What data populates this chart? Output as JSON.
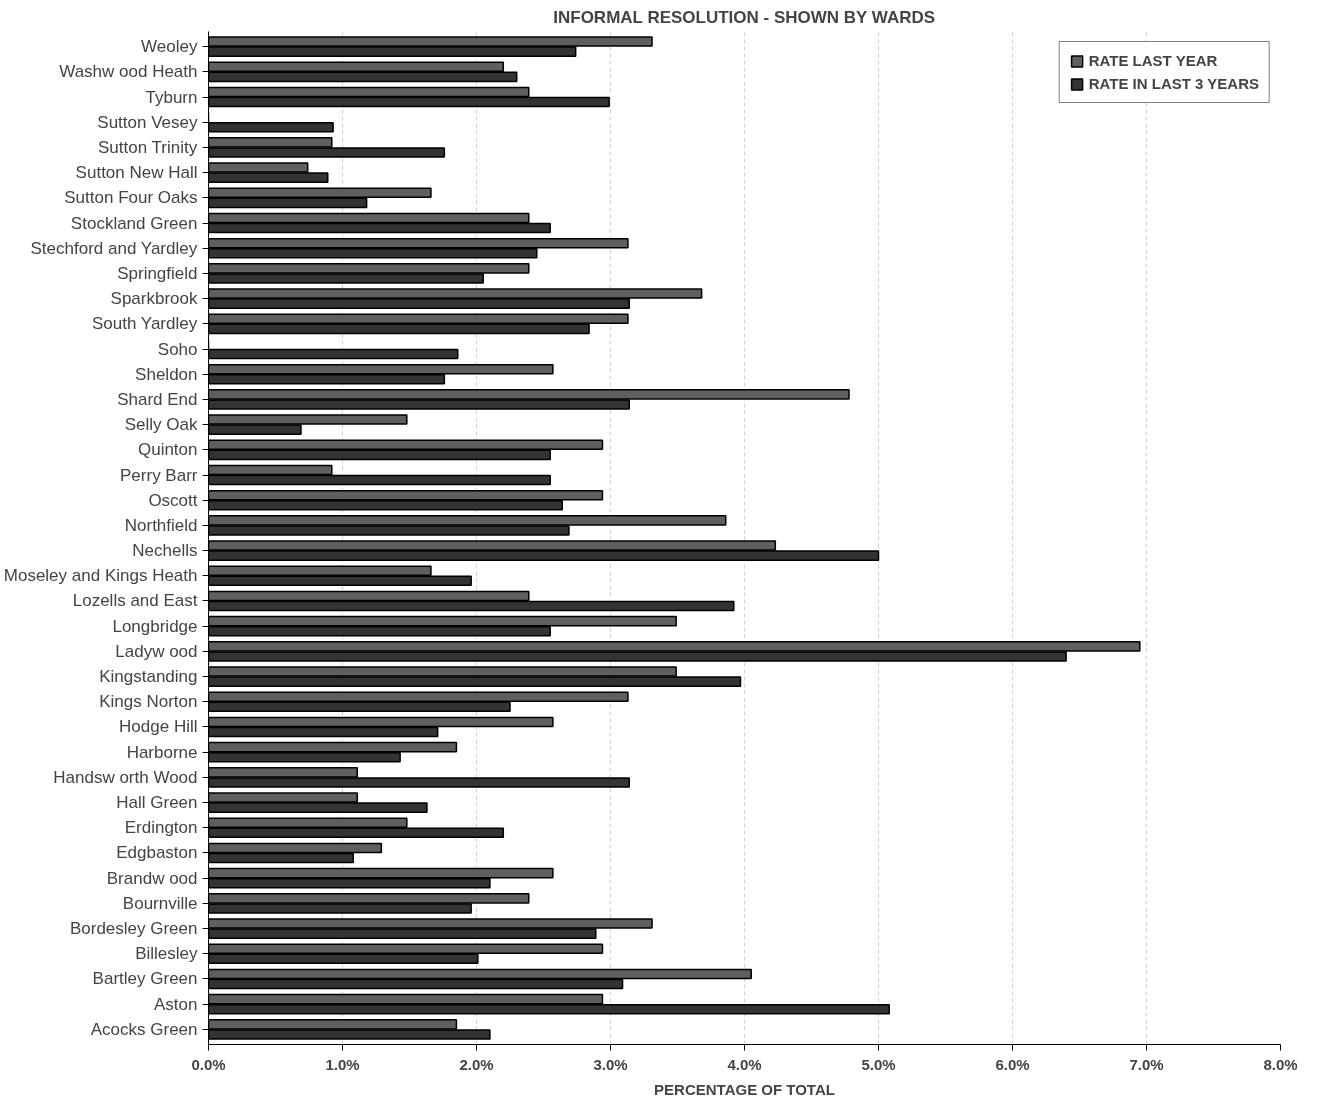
{
  "chart_data": {
    "type": "bar",
    "orientation": "horizontal",
    "title": "INFORMAL RESOLUTION - SHOWN BY WARDS",
    "xlabel": "PERCENTAGE OF TOTAL",
    "categories": [
      "Weoley",
      "Washw ood Heath",
      "Tyburn",
      "Sutton Vesey",
      "Sutton Trinity",
      "Sutton New Hall",
      "Sutton Four Oaks",
      "Stockland Green",
      "Stechford and Yardley",
      "Springfield",
      "Sparkbrook",
      "South Yardley",
      "Soho",
      "Sheldon",
      "Shard End",
      "Selly Oak",
      "Quinton",
      "Perry Barr",
      "Oscott",
      "Northfield",
      "Nechells",
      "Moseley and Kings Heath",
      "Lozells and East",
      "Longbridge",
      "Ladyw ood",
      "Kingstanding",
      "Kings Norton",
      "Hodge Hill",
      "Harborne",
      "Handsw orth Wood",
      "Hall Green",
      "Erdington",
      "Edgbaston",
      "Brandw ood",
      "Bournville",
      "Bordesley Green",
      "Billesley",
      "Bartley Green",
      "Aston",
      "Acocks Green"
    ],
    "series": [
      {
        "name": "RATE LAST YEAR",
        "color": "#5f5f5f",
        "values": [
          3.31,
          2.2,
          2.39,
          null,
          0.92,
          0.74,
          1.66,
          2.39,
          3.13,
          2.39,
          3.68,
          3.13,
          null,
          2.57,
          4.78,
          1.48,
          2.94,
          0.92,
          2.94,
          3.86,
          4.23,
          1.66,
          2.39,
          3.49,
          6.95,
          3.49,
          3.13,
          2.57,
          1.85,
          1.11,
          1.11,
          1.48,
          1.29,
          2.57,
          2.39,
          3.31,
          2.94,
          4.05,
          2.94,
          1.85
        ]
      },
      {
        "name": "RATE IN LAST 3 YEARS",
        "color": "#333333",
        "values": [
          2.74,
          2.3,
          2.99,
          0.93,
          1.76,
          0.89,
          1.18,
          2.55,
          2.45,
          2.05,
          3.14,
          2.84,
          1.86,
          1.76,
          3.14,
          0.69,
          2.55,
          2.55,
          2.64,
          2.69,
          5.0,
          1.96,
          3.92,
          2.55,
          6.4,
          3.97,
          2.25,
          1.71,
          1.43,
          3.14,
          1.63,
          2.2,
          1.08,
          2.1,
          1.96,
          2.89,
          2.01,
          3.09,
          5.08,
          2.1
        ]
      }
    ],
    "xlim": [
      0,
      8
    ],
    "xticks": [
      {
        "value": 0,
        "label": "0.0%"
      },
      {
        "value": 1,
        "label": "1.0%"
      },
      {
        "value": 2,
        "label": "2.0%"
      },
      {
        "value": 3,
        "label": "3.0%"
      },
      {
        "value": 4,
        "label": "4.0%"
      },
      {
        "value": 5,
        "label": "5.0%"
      },
      {
        "value": 6,
        "label": "6.0%"
      },
      {
        "value": 7,
        "label": "7.0%"
      },
      {
        "value": 8,
        "label": "8.0%"
      }
    ],
    "grid": "x",
    "legend": "top right"
  }
}
